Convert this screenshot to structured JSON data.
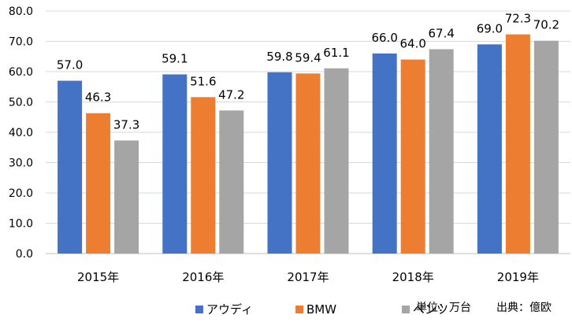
{
  "chart_data": {
    "type": "bar",
    "title": "",
    "xlabel": "",
    "ylabel": "",
    "categories": [
      "2015年",
      "2016年",
      "2017年",
      "2018年",
      "2019年"
    ],
    "series": [
      {
        "name": "アウディ",
        "color": "#4472C4",
        "values": [
          57.0,
          59.1,
          59.8,
          66.0,
          69.0
        ]
      },
      {
        "name": "BMW",
        "color": "#ED7D31",
        "values": [
          46.3,
          51.6,
          59.4,
          64.0,
          72.3
        ]
      },
      {
        "name": "ベンツ",
        "color": "#A5A5A5",
        "values": [
          37.3,
          47.2,
          61.1,
          67.4,
          70.2
        ]
      }
    ],
    "ylim": [
      0,
      80
    ],
    "yticks": [
      "0.0",
      "10.0",
      "20.0",
      "30.0",
      "40.0",
      "50.0",
      "60.0",
      "70.0",
      "80.0"
    ],
    "grid": true,
    "legend_position": "bottom"
  },
  "notes": {
    "unit": "単位：万台",
    "source": "出典：億欧"
  }
}
